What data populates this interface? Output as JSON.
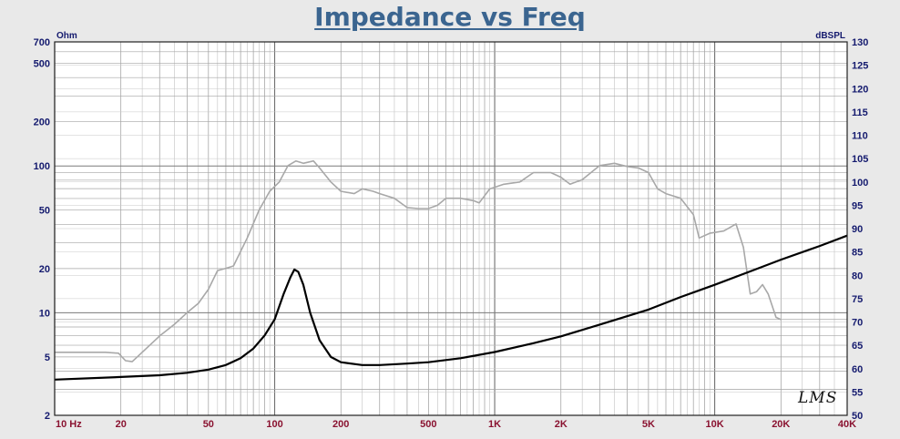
{
  "chart_data": {
    "type": "line",
    "title": "Impedance vs Freq",
    "x_axis": {
      "scale": "log",
      "range": [
        10,
        40000
      ],
      "tick_labels": [
        {
          "value": 10,
          "label": "10  Hz"
        },
        {
          "value": 20,
          "label": "20"
        },
        {
          "value": 50,
          "label": "50"
        },
        {
          "value": 100,
          "label": "100"
        },
        {
          "value": 200,
          "label": "200"
        },
        {
          "value": 500,
          "label": "500"
        },
        {
          "value": 1000,
          "label": "1K"
        },
        {
          "value": 2000,
          "label": "2K"
        },
        {
          "value": 5000,
          "label": "5K"
        },
        {
          "value": 10000,
          "label": "10K"
        },
        {
          "value": 20000,
          "label": "20K"
        },
        {
          "value": 40000,
          "label": "40K"
        }
      ]
    },
    "y_left": {
      "unit": "Ohm",
      "scale": "log",
      "range": [
        2,
        700
      ],
      "ticks": [
        2,
        5,
        10,
        20,
        50,
        100,
        200,
        500,
        700
      ]
    },
    "y_right": {
      "unit": "dBSPL",
      "scale": "linear",
      "range": [
        50,
        130
      ],
      "ticks": [
        50,
        55,
        60,
        65,
        70,
        75,
        80,
        85,
        90,
        95,
        100,
        105,
        110,
        115,
        120,
        125,
        130
      ]
    },
    "grid": true,
    "series": [
      {
        "axis": "left",
        "color": "#000000",
        "points": [
          [
            10,
            3.5
          ],
          [
            20,
            3.65
          ],
          [
            30,
            3.75
          ],
          [
            40,
            3.9
          ],
          [
            50,
            4.1
          ],
          [
            60,
            4.4
          ],
          [
            70,
            4.9
          ],
          [
            80,
            5.7
          ],
          [
            90,
            7.0
          ],
          [
            100,
            9.0
          ],
          [
            110,
            13.5
          ],
          [
            118,
            17.5
          ],
          [
            123,
            19.7
          ],
          [
            128,
            19.0
          ],
          [
            135,
            15.5
          ],
          [
            145,
            10.0
          ],
          [
            160,
            6.5
          ],
          [
            180,
            5.0
          ],
          [
            200,
            4.6
          ],
          [
            250,
            4.4
          ],
          [
            300,
            4.4
          ],
          [
            400,
            4.5
          ],
          [
            500,
            4.6
          ],
          [
            700,
            4.9
          ],
          [
            1000,
            5.4
          ],
          [
            1500,
            6.2
          ],
          [
            2000,
            6.9
          ],
          [
            3000,
            8.3
          ],
          [
            5000,
            10.5
          ],
          [
            7000,
            12.8
          ],
          [
            10000,
            15.5
          ],
          [
            15000,
            19.5
          ],
          [
            20000,
            23.0
          ],
          [
            30000,
            28.5
          ],
          [
            40000,
            33.5
          ]
        ]
      },
      {
        "axis": "right",
        "color": "#a8a8a8",
        "points": [
          [
            10,
            63.5
          ],
          [
            17,
            63.5
          ],
          [
            19.5,
            63.3
          ],
          [
            21,
            61.7
          ],
          [
            22.5,
            61.5
          ],
          [
            25,
            63.5
          ],
          [
            30,
            67
          ],
          [
            35,
            69.5
          ],
          [
            40,
            72
          ],
          [
            45,
            74
          ],
          [
            50,
            77
          ],
          [
            55,
            81
          ],
          [
            60,
            81.5
          ],
          [
            65,
            82
          ],
          [
            75,
            88
          ],
          [
            85,
            94
          ],
          [
            95,
            98
          ],
          [
            105,
            100
          ],
          [
            115,
            103.5
          ],
          [
            125,
            104.5
          ],
          [
            135,
            104
          ],
          [
            150,
            104.5
          ],
          [
            160,
            103
          ],
          [
            180,
            100
          ],
          [
            200,
            98
          ],
          [
            230,
            97.5
          ],
          [
            250,
            98.5
          ],
          [
            280,
            98
          ],
          [
            300,
            97.5
          ],
          [
            350,
            96.5
          ],
          [
            400,
            94.5
          ],
          [
            450,
            94.3
          ],
          [
            500,
            94.3
          ],
          [
            550,
            95
          ],
          [
            600,
            96.5
          ],
          [
            700,
            96.5
          ],
          [
            800,
            96
          ],
          [
            850,
            95.5
          ],
          [
            950,
            98.5
          ],
          [
            1100,
            99.5
          ],
          [
            1300,
            100
          ],
          [
            1500,
            102
          ],
          [
            1800,
            102
          ],
          [
            2000,
            101
          ],
          [
            2200,
            99.5
          ],
          [
            2500,
            100.5
          ],
          [
            3000,
            103.5
          ],
          [
            3500,
            104
          ],
          [
            4000,
            103.3
          ],
          [
            4500,
            103
          ],
          [
            5000,
            102
          ],
          [
            5500,
            98.5
          ],
          [
            6000,
            97.5
          ],
          [
            7000,
            96.5
          ],
          [
            8000,
            93
          ],
          [
            8500,
            88
          ],
          [
            9500,
            89
          ],
          [
            11000,
            89.5
          ],
          [
            12500,
            91
          ],
          [
            13500,
            86
          ],
          [
            14500,
            76
          ],
          [
            15500,
            76.5
          ],
          [
            16500,
            78
          ],
          [
            17500,
            76
          ],
          [
            19000,
            71
          ],
          [
            20000,
            70.5
          ]
        ]
      }
    ]
  },
  "logo_text": "LMS"
}
